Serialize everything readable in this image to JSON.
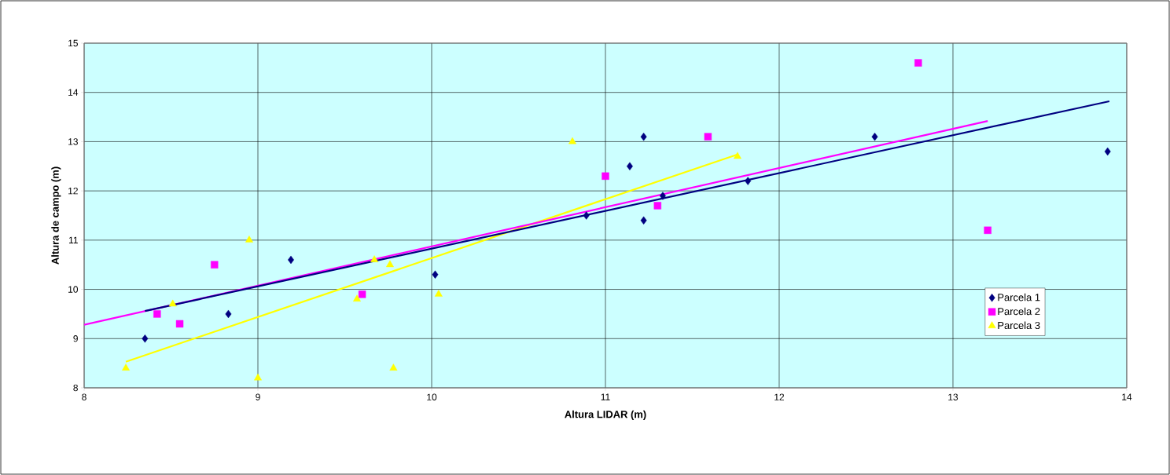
{
  "chart_data": {
    "type": "scatter",
    "xlabel": "Altura LIDAR (m)",
    "ylabel": "Altura de campo (m)",
    "xlim": [
      8,
      14
    ],
    "ylim": [
      8,
      15
    ],
    "xticks": [
      8,
      9,
      10,
      11,
      12,
      13,
      14
    ],
    "yticks": [
      8,
      9,
      10,
      11,
      12,
      13,
      14,
      15
    ],
    "grid": true,
    "legend": "bottom right",
    "line_style": "solid",
    "series": [
      {
        "name": "Parcela 1",
        "color": "#000080",
        "marker": "diamond",
        "x": [
          8.35,
          8.83,
          9.19,
          10.02,
          10.89,
          11.14,
          11.22,
          11.22,
          11.33,
          11.82,
          12.55,
          13.89
        ],
        "values": [
          9.0,
          9.5,
          10.6,
          10.3,
          11.5,
          12.5,
          13.1,
          11.4,
          11.9,
          12.2,
          13.1,
          12.8
        ]
      },
      {
        "name": "Parcela 2",
        "color": "#ff00ff",
        "marker": "square",
        "x": [
          8.42,
          8.55,
          8.75,
          9.6,
          11.0,
          11.3,
          11.59,
          12.8,
          13.2
        ],
        "values": [
          9.5,
          9.3,
          10.5,
          9.9,
          12.3,
          11.7,
          13.1,
          14.6,
          11.2
        ]
      },
      {
        "name": "Parcela 3",
        "color": "#ffff00",
        "marker": "triangle",
        "x": [
          8.24,
          8.51,
          8.95,
          9.0,
          9.57,
          9.67,
          9.76,
          9.78,
          10.04,
          10.81,
          11.76
        ],
        "values": [
          8.4,
          9.7,
          11.0,
          8.2,
          9.8,
          10.6,
          10.5,
          8.4,
          9.9,
          13.0,
          12.7
        ]
      },
      {
        "type": "line",
        "color": "#000080",
        "marker": "none",
        "x": [
          8.35,
          13.9
        ],
        "values": [
          9.56,
          13.82
        ]
      },
      {
        "type": "line",
        "color": "#ff00ff",
        "marker": "none",
        "x": [
          8.0,
          13.2
        ],
        "values": [
          9.28,
          13.42
        ]
      },
      {
        "type": "line",
        "color": "#ffff00",
        "marker": "none",
        "x": [
          8.24,
          11.76
        ],
        "values": [
          8.53,
          12.74
        ]
      }
    ]
  }
}
